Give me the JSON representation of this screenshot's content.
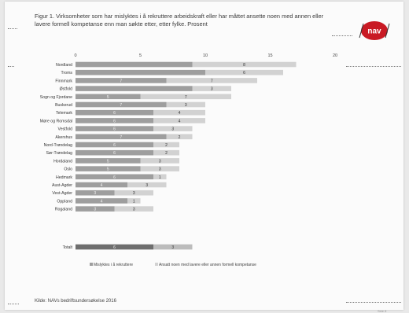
{
  "title": "Figur 1. Virksomheter som har mislyktes i å rekruttere arbeidskraft eller har måttet ansette noen med annen eller lavere formell kompetanse enn man søkte etter, etter fylke. Prosent",
  "logo_text": "nav",
  "source": "Kilde: NAVs bedriftsundersøkelse 2016",
  "page_label": "Side 8",
  "colors": {
    "series1": "#9e9e9e",
    "series2": "#d2d2d2",
    "series1_total": "#6e6e6e",
    "series2_total": "#bcbcbc",
    "logo": "#c91a24"
  },
  "chart_data": {
    "type": "bar",
    "orientation": "horizontal",
    "stacked": true,
    "categories": [
      "Nordland",
      "Troms",
      "Finnmark",
      "Østfold",
      "Sogn og Fjordane",
      "Buskerud",
      "Telemark",
      "Møre og Romsdal",
      "Vestfold",
      "Akershus",
      "Nord-Trøndelag",
      "Sør-Trøndelag",
      "Hordaland",
      "Oslo",
      "Hedmark",
      "Aust-Agder",
      "Vest-Agder",
      "Oppland",
      "Rogaland",
      "Totalt"
    ],
    "series": [
      {
        "name": "Mislyktes i å rekruttere",
        "values": [
          9,
          10,
          7,
          9,
          5,
          7,
          6,
          6,
          6,
          7,
          6,
          6,
          5,
          5,
          6,
          4,
          3,
          4,
          3,
          6
        ]
      },
      {
        "name": "Ansatt noen med lavere eller annen formell kompetanse",
        "values": [
          8,
          6,
          7,
          3,
          7,
          3,
          4,
          4,
          3,
          2,
          2,
          2,
          3,
          3,
          1,
          3,
          3,
          1,
          3,
          3
        ]
      }
    ],
    "value_labels": [
      [
        "",
        "8"
      ],
      [
        "",
        "6"
      ],
      [
        "7",
        "7"
      ],
      [
        "",
        "3"
      ],
      [
        "5",
        "7"
      ],
      [
        "7",
        "3"
      ],
      [
        "6",
        "4"
      ],
      [
        "6",
        "4"
      ],
      [
        "6",
        "3"
      ],
      [
        "7",
        "2"
      ],
      [
        "6",
        "2"
      ],
      [
        "6",
        "2"
      ],
      [
        "5",
        "3"
      ],
      [
        "5",
        "3"
      ],
      [
        "6",
        "1"
      ],
      [
        "4",
        "3"
      ],
      [
        "3",
        "3"
      ],
      [
        "4",
        "1"
      ],
      [
        "3",
        "3"
      ],
      [
        "6",
        "3"
      ]
    ],
    "xlim": [
      0,
      20
    ],
    "xticks": [
      0,
      5,
      10,
      15,
      20
    ],
    "legend_position": "bottom",
    "grid": false
  }
}
